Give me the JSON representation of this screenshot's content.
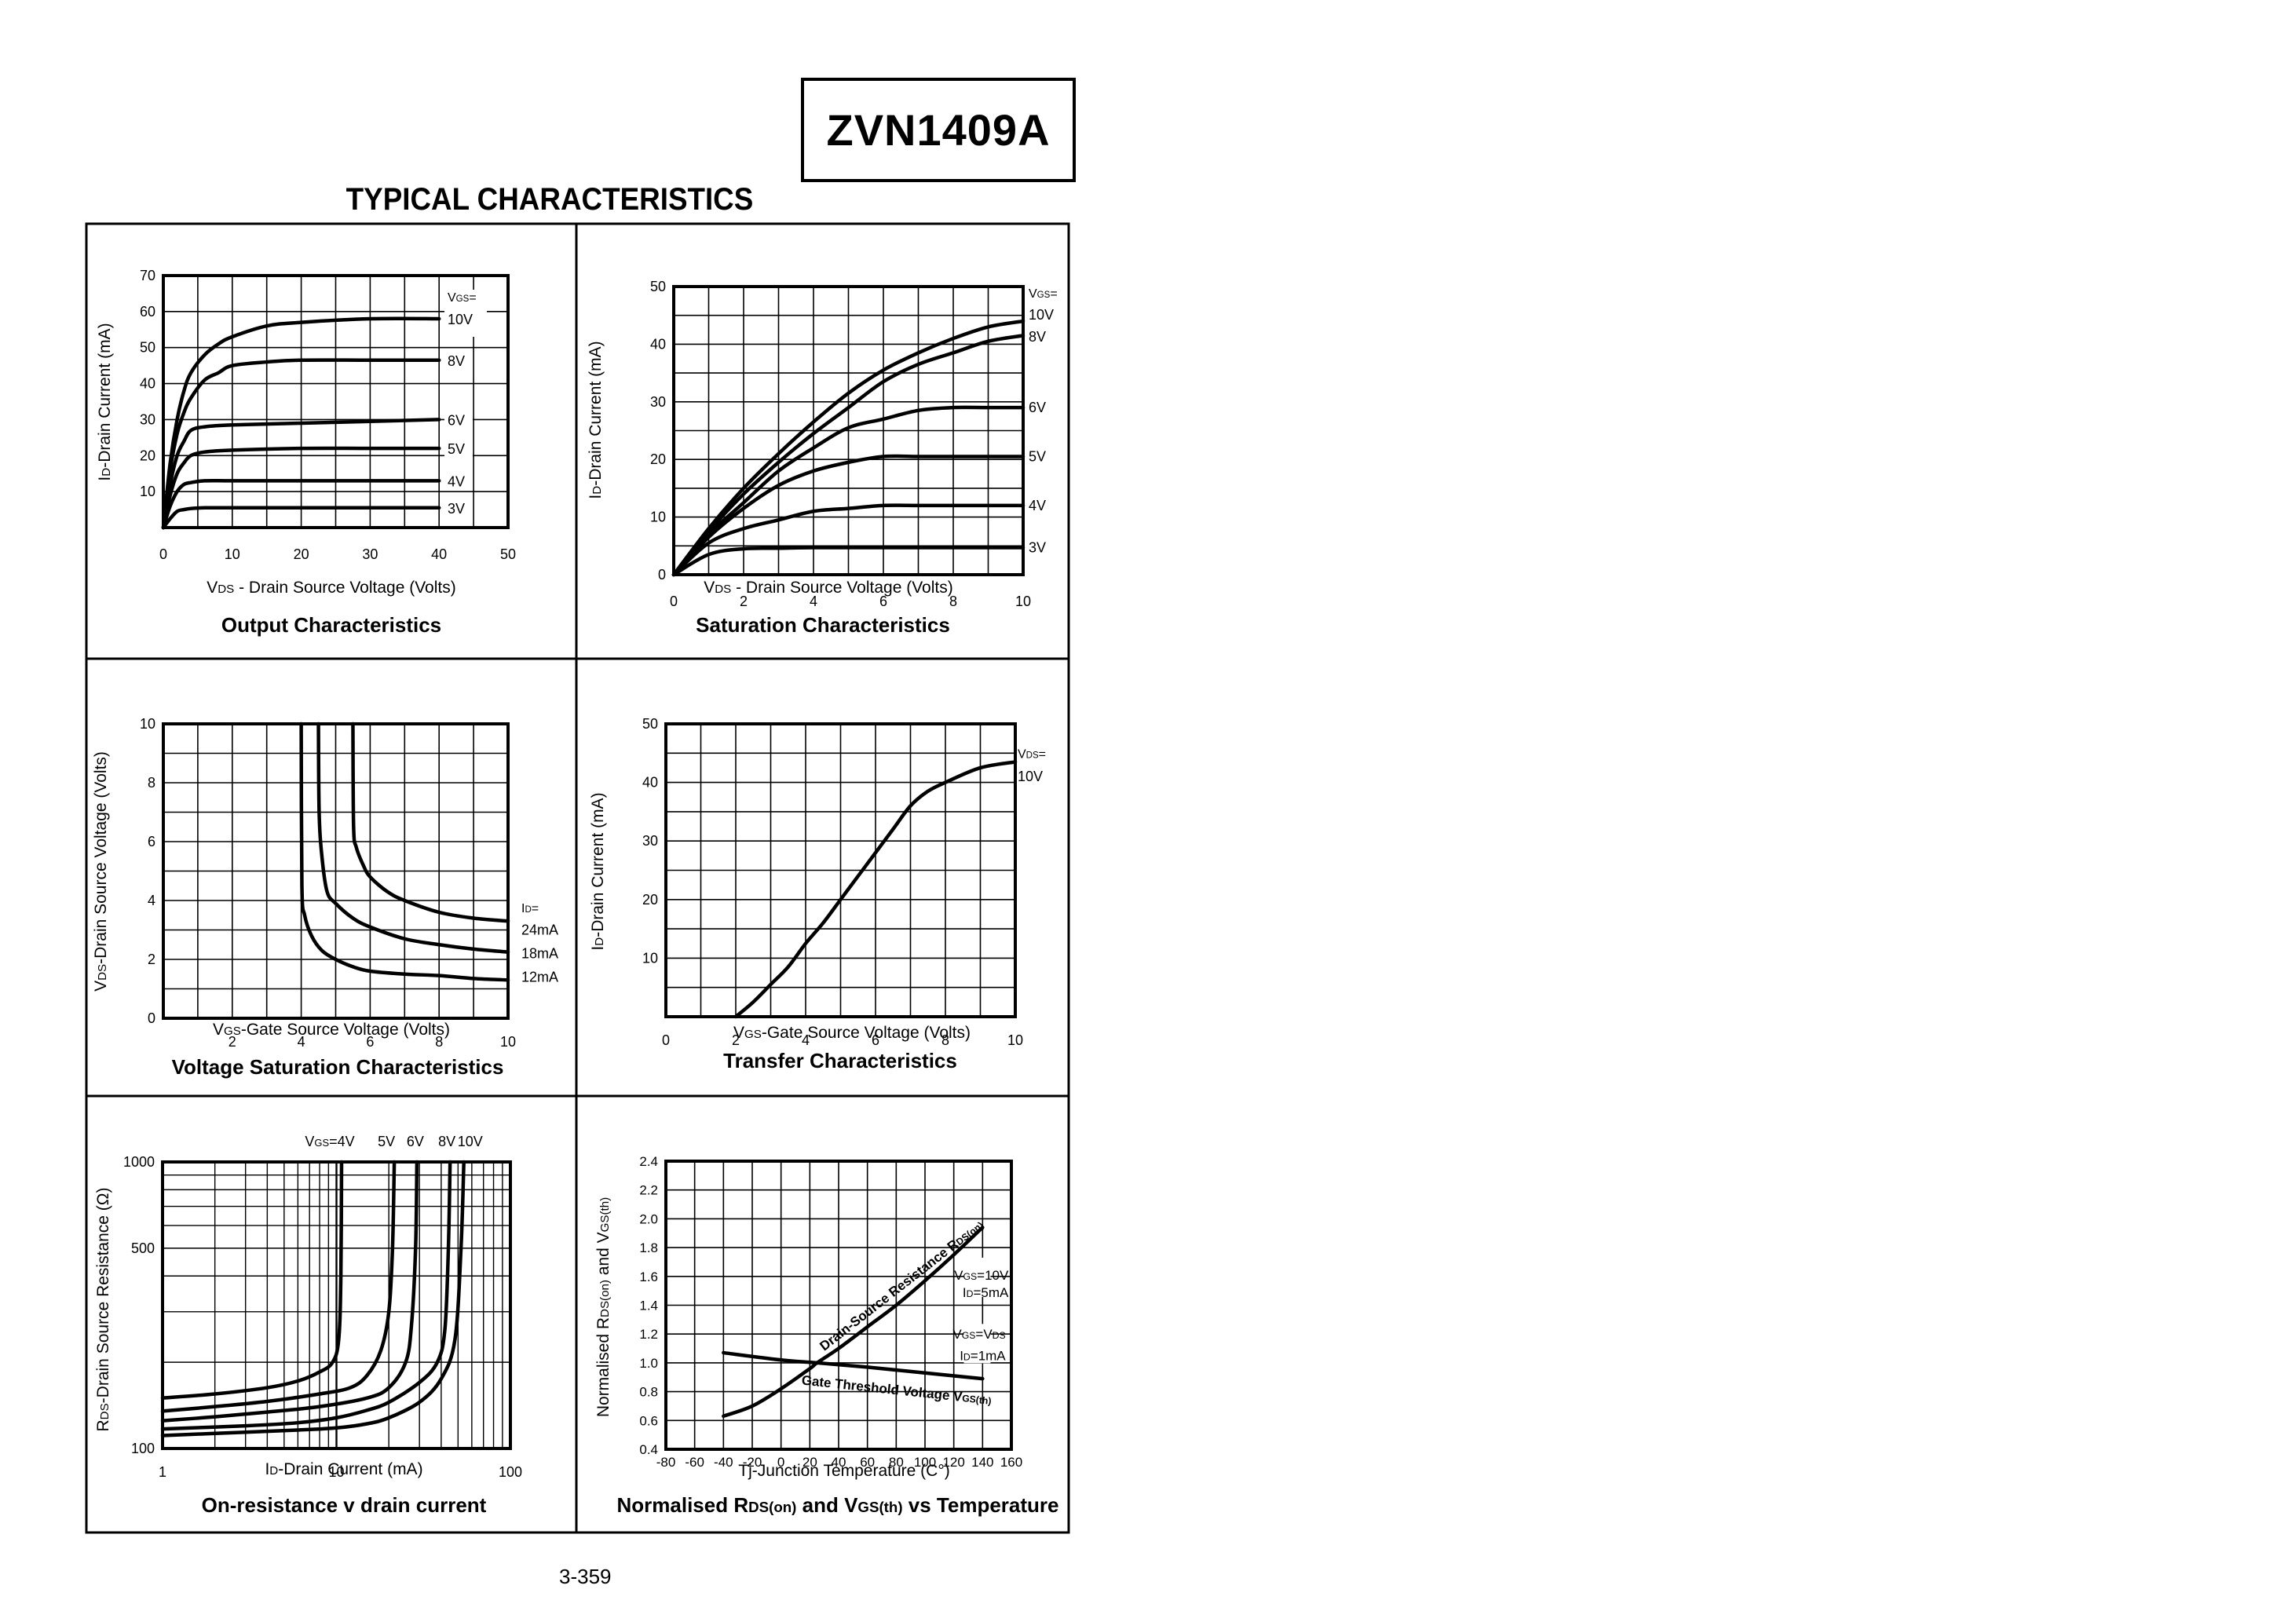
{
  "header": {
    "part_number": "ZVN1409A",
    "section_title": "TYPICAL CHARACTERISTICS"
  },
  "footer": {
    "page_number": "3-359"
  },
  "chart_data": [
    {
      "id": "output",
      "type": "line",
      "title": "Output Characteristics",
      "xlabel": "VDS - Drain Source Voltage (Volts)",
      "ylabel": "ID-Drain Current (mA)",
      "xlim": [
        0,
        50
      ],
      "ylim": [
        0,
        70
      ],
      "xticks": [
        0,
        10,
        20,
        30,
        40,
        50
      ],
      "yticks": [
        10,
        20,
        30,
        40,
        50,
        60,
        70
      ],
      "grid": true,
      "legend_header": "VGS=",
      "series": [
        {
          "name": "10V",
          "x": [
            0,
            1,
            2,
            3,
            4,
            6,
            8,
            10,
            15,
            20,
            30,
            40
          ],
          "y": [
            0,
            18,
            30,
            38,
            43,
            48,
            51,
            53,
            56,
            57,
            58,
            58
          ]
        },
        {
          "name": "8V",
          "x": [
            0,
            1,
            2,
            3,
            4,
            6,
            8,
            10,
            15,
            20,
            30,
            40
          ],
          "y": [
            0,
            16,
            26,
            32,
            36,
            41,
            43,
            45,
            46,
            46.5,
            46.5,
            46.5
          ]
        },
        {
          "name": "6V",
          "x": [
            0,
            1,
            2,
            3,
            4,
            6,
            10,
            20,
            30,
            40
          ],
          "y": [
            0,
            12,
            20,
            24,
            27,
            28,
            28.5,
            29,
            29.5,
            30
          ]
        },
        {
          "name": "5V",
          "x": [
            0,
            1,
            2,
            3,
            4,
            6,
            10,
            20,
            30,
            40
          ],
          "y": [
            0,
            9,
            15,
            18,
            20,
            21,
            21.5,
            22,
            22,
            22
          ]
        },
        {
          "name": "4V",
          "x": [
            0,
            1,
            2,
            3,
            4,
            6,
            10,
            20,
            30,
            40
          ],
          "y": [
            0,
            6,
            10,
            12,
            12.5,
            13,
            13,
            13,
            13,
            13
          ]
        },
        {
          "name": "3V",
          "x": [
            0,
            1,
            2,
            3,
            4,
            6,
            10,
            20,
            30,
            40
          ],
          "y": [
            0,
            2.5,
            4.5,
            5,
            5.3,
            5.5,
            5.5,
            5.5,
            5.5,
            5.5
          ]
        }
      ]
    },
    {
      "id": "saturation",
      "type": "line",
      "title": "Saturation Characteristics",
      "xlabel": "VDS - Drain Source Voltage (Volts)",
      "ylabel": "ID-Drain Current (mA)",
      "xlim": [
        0,
        10
      ],
      "ylim": [
        0,
        50
      ],
      "xticks": [
        0,
        2,
        4,
        6,
        8,
        10
      ],
      "yticks": [
        0,
        10,
        20,
        30,
        40,
        50
      ],
      "grid": true,
      "legend_header": "VGS=",
      "series": [
        {
          "name": "10V",
          "x": [
            0,
            1,
            2,
            3,
            4,
            5,
            6,
            7,
            8,
            9,
            10
          ],
          "y": [
            0,
            8,
            15,
            21,
            26.5,
            31.5,
            35.5,
            38.5,
            41,
            43,
            44
          ]
        },
        {
          "name": "8V",
          "x": [
            0,
            1,
            2,
            3,
            4,
            5,
            6,
            7,
            8,
            9,
            10
          ],
          "y": [
            0,
            7.5,
            14,
            19.5,
            24.5,
            29,
            33.5,
            36.5,
            38.5,
            40.5,
            41.5
          ]
        },
        {
          "name": "6V",
          "x": [
            0,
            1,
            2,
            3,
            4,
            5,
            6,
            7,
            8,
            9,
            10
          ],
          "y": [
            0,
            7,
            12.5,
            18,
            22,
            25.5,
            27,
            28.5,
            29,
            29,
            29
          ]
        },
        {
          "name": "5V",
          "x": [
            0,
            1,
            2,
            3,
            4,
            5,
            6,
            7,
            8,
            9,
            10
          ],
          "y": [
            0,
            6.5,
            11.5,
            15.5,
            18,
            19.5,
            20.5,
            20.5,
            20.5,
            20.5,
            20.5
          ]
        },
        {
          "name": "4V",
          "x": [
            0,
            1,
            2,
            3,
            4,
            5,
            6,
            7,
            8,
            9,
            10
          ],
          "y": [
            0,
            5.5,
            8,
            9.5,
            11,
            11.5,
            12,
            12,
            12,
            12,
            12
          ]
        },
        {
          "name": "3V",
          "x": [
            0,
            1,
            2,
            3,
            4,
            6,
            8,
            10
          ],
          "y": [
            0,
            3.5,
            4.5,
            4.6,
            4.7,
            4.7,
            4.7,
            4.7
          ]
        }
      ]
    },
    {
      "id": "voltage-saturation",
      "type": "line",
      "title": "Voltage Saturation Characteristics",
      "xlabel": "VGS-Gate Source Voltage  (Volts)",
      "ylabel": "VDS-Drain Source  Voltage (Volts)",
      "xlim": [
        0,
        10
      ],
      "ylim": [
        0,
        10
      ],
      "xticks": [
        2,
        4,
        6,
        8,
        10
      ],
      "yticks": [
        0,
        2,
        4,
        6,
        8,
        10
      ],
      "grid": true,
      "legend_header": "ID=",
      "series": [
        {
          "name": "24mA",
          "x": [
            5.5,
            5.52,
            5.6,
            5.8,
            6.0,
            6.5,
            7.0,
            8.0,
            9.0,
            10.0
          ],
          "y": [
            10,
            6.5,
            5.8,
            5.2,
            4.8,
            4.3,
            4.0,
            3.6,
            3.4,
            3.3
          ]
        },
        {
          "name": "18mA",
          "x": [
            4.5,
            4.52,
            4.6,
            4.75,
            5.0,
            5.5,
            6.0,
            7.0,
            8.0,
            9.0,
            10.0
          ],
          "y": [
            10,
            7.0,
            5.5,
            4.3,
            3.9,
            3.4,
            3.1,
            2.7,
            2.5,
            2.35,
            2.25
          ]
        },
        {
          "name": "12mA",
          "x": [
            4.0,
            4.02,
            4.1,
            4.3,
            4.6,
            5.0,
            5.5,
            6.0,
            7.0,
            8.0,
            9.0,
            10.0
          ],
          "y": [
            10,
            4.5,
            3.5,
            2.8,
            2.3,
            2.0,
            1.75,
            1.6,
            1.5,
            1.45,
            1.35,
            1.3
          ]
        }
      ]
    },
    {
      "id": "transfer",
      "type": "line",
      "title": "Transfer Characteristics",
      "xlabel": "VGS-Gate Source Voltage (Volts)",
      "ylabel": "ID-Drain Current  (mA)",
      "xlim": [
        0,
        10
      ],
      "ylim": [
        0,
        50
      ],
      "xticks": [
        0,
        2,
        4,
        6,
        8,
        10
      ],
      "yticks": [
        10,
        20,
        30,
        40,
        50
      ],
      "grid": true,
      "legend_header": "VDS=",
      "series": [
        {
          "name": "10V",
          "x": [
            2,
            2.5,
            3,
            3.5,
            4,
            4.5,
            5,
            5.5,
            6,
            6.5,
            7,
            7.5,
            8,
            9,
            10
          ],
          "y": [
            0,
            2.5,
            5.5,
            8.5,
            12.5,
            16,
            20,
            24,
            28,
            32,
            36,
            38.5,
            40,
            42.5,
            43.5
          ]
        }
      ]
    },
    {
      "id": "on-resistance",
      "type": "line",
      "title": "On-resistance v drain current",
      "xlabel": "ID-Drain Current (mA)",
      "ylabel": "RDS-Drain Source Resistance  (Ω)",
      "xscale": "log",
      "yscale": "log",
      "xlim": [
        1,
        100
      ],
      "ylim": [
        100,
        1000
      ],
      "xticks": [
        1,
        10,
        100
      ],
      "yticks": [
        100,
        500,
        1000
      ],
      "grid": true,
      "legend_header": "VGS=",
      "series": [
        {
          "name": "4V",
          "x": [
            1,
            2,
            4,
            6,
            8,
            9.5,
            10.3,
            10.6,
            10.7
          ],
          "y": [
            150,
            155,
            163,
            172,
            185,
            200,
            240,
            400,
            1000
          ]
        },
        {
          "name": "5V",
          "x": [
            1,
            2,
            4,
            8,
            12,
            15,
            18,
            20,
            21,
            21.5
          ],
          "y": [
            135,
            140,
            146,
            155,
            163,
            180,
            220,
            300,
            500,
            1000
          ]
        },
        {
          "name": "6V",
          "x": [
            1,
            2,
            4,
            8,
            15,
            20,
            25,
            27,
            28.5,
            29
          ],
          "y": [
            125,
            129,
            134,
            140,
            150,
            163,
            200,
            270,
            500,
            1000
          ]
        },
        {
          "name": "8V",
          "x": [
            1,
            3,
            6,
            10,
            15,
            20,
            30,
            38,
            42,
            44,
            45
          ],
          "y": [
            117,
            120,
            123,
            128,
            136,
            145,
            170,
            200,
            260,
            500,
            1000
          ]
        },
        {
          "name": "10V",
          "x": [
            1,
            3,
            6,
            10,
            15,
            20,
            30,
            40,
            48,
            52,
            54
          ],
          "y": [
            111,
            114,
            116,
            118,
            122,
            128,
            145,
            175,
            240,
            500,
            1000
          ]
        }
      ],
      "top_labels": [
        "VGS=4V",
        "5V",
        "6V",
        "8V",
        "10V"
      ]
    },
    {
      "id": "normalised",
      "type": "line",
      "title": "Normalised RDS(on) and VGS(th) vs Temperature",
      "xlabel": "Tj-Junction Temperature (C°)",
      "ylabel": "Normalised RDS(on) and VGS(th)",
      "xlim": [
        -80,
        160
      ],
      "ylim": [
        0.4,
        2.4
      ],
      "xticks": [
        -80,
        -60,
        -40,
        -20,
        0,
        20,
        40,
        60,
        80,
        100,
        120,
        140,
        160
      ],
      "yticks": [
        0.4,
        0.6,
        0.8,
        1.0,
        1.2,
        1.4,
        1.6,
        1.8,
        2.0,
        2.2,
        2.4
      ],
      "grid": true,
      "series": [
        {
          "name": "Drain-Source Resistance RDS(on)",
          "condition": [
            "VGS=10V",
            "ID=5mA"
          ],
          "x": [
            -40,
            -20,
            0,
            20,
            25,
            40,
            60,
            80,
            100,
            120,
            140
          ],
          "y": [
            0.63,
            0.7,
            0.82,
            0.96,
            1.0,
            1.1,
            1.25,
            1.4,
            1.57,
            1.75,
            1.94
          ]
        },
        {
          "name": "Gate Threshold Voltage VGS(th)",
          "condition": [
            "VGS=VDS",
            "ID=1mA"
          ],
          "x": [
            -40,
            0,
            25,
            60,
            100,
            140
          ],
          "y": [
            1.07,
            1.02,
            1.0,
            0.97,
            0.93,
            0.89
          ]
        }
      ]
    }
  ],
  "panels": [
    {
      "title": "Output Characteristics"
    },
    {
      "title": "Saturation Characteristics"
    },
    {
      "title": "Voltage Saturation Characteristics"
    },
    {
      "title": "Transfer Characteristics"
    },
    {
      "title": "On-resistance v drain current"
    },
    {
      "title": "Normalised RDS(on) and VGS(th) vs Temperature"
    }
  ]
}
